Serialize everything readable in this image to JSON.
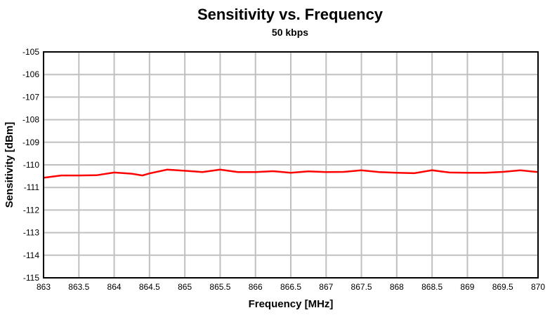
{
  "chart_data": {
    "type": "line",
    "title": "Sensitivity vs. Frequency",
    "subtitle": "50 kbps",
    "xlabel": "Frequency [MHz]",
    "ylabel": "Sensitivity [dBm]",
    "xlim": [
      863,
      870
    ],
    "ylim": [
      -115,
      -105
    ],
    "xticks": [
      "863",
      "863.5",
      "864",
      "864.5",
      "865",
      "865.5",
      "866",
      "866.5",
      "867",
      "867.5",
      "868",
      "868.5",
      "869",
      "869.5",
      "870"
    ],
    "yticks": [
      "-105",
      "-106",
      "-107",
      "-108",
      "-109",
      "-110",
      "-111",
      "-112",
      "-113",
      "-114",
      "-115"
    ],
    "grid": true,
    "line_color": "#ff0000",
    "grid_color": "#c0c0c0",
    "x": [
      863,
      863.25,
      863.5,
      863.75,
      864,
      864.25,
      864.4,
      864.5,
      864.75,
      865,
      865.25,
      865.5,
      865.75,
      866,
      866.25,
      866.5,
      866.75,
      867,
      867.25,
      867.5,
      867.75,
      868,
      868.25,
      868.5,
      868.75,
      869,
      869.25,
      869.5,
      869.75,
      870
    ],
    "y": [
      -110.57,
      -110.47,
      -110.47,
      -110.46,
      -110.34,
      -110.39,
      -110.47,
      -110.38,
      -110.21,
      -110.26,
      -110.32,
      -110.21,
      -110.32,
      -110.32,
      -110.28,
      -110.35,
      -110.29,
      -110.32,
      -110.31,
      -110.24,
      -110.32,
      -110.35,
      -110.37,
      -110.24,
      -110.34,
      -110.35,
      -110.35,
      -110.31,
      -110.24,
      -110.32
    ]
  }
}
